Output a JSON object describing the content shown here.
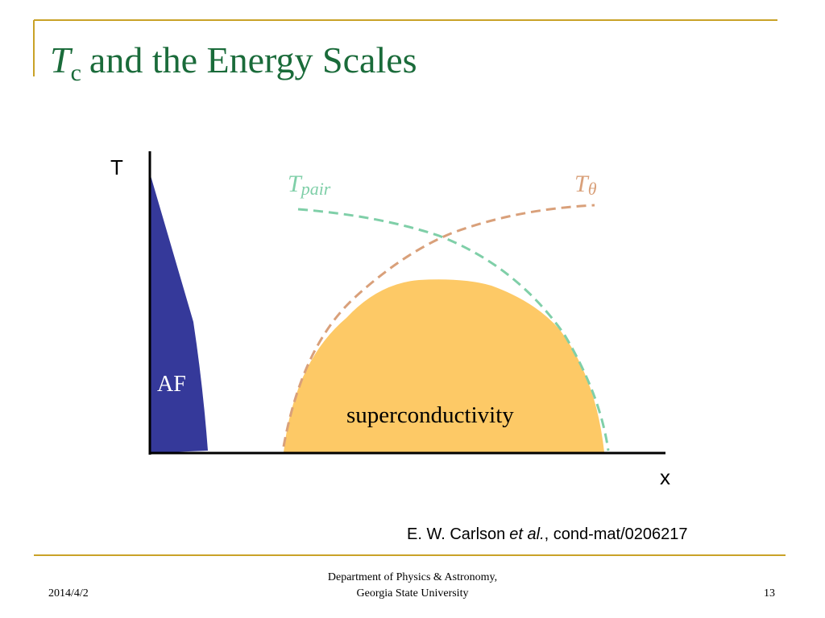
{
  "title": {
    "main": "T",
    "subscript": "c",
    "rest": "and the Energy Scales"
  },
  "diagram": {
    "y_axis_label": "T",
    "x_axis_label": "x",
    "t_pair": {
      "main": "T",
      "subscript": "pair"
    },
    "t_theta": {
      "main": "T",
      "subscript": "θ"
    },
    "af_label": "AF",
    "sc_label": "superconductivity"
  },
  "citation": {
    "authors": "E. W. Carlson",
    "etal": "et al.",
    "ref": ", cond-mat/0206217"
  },
  "footer": {
    "date": "2014/4/2",
    "dept_line1": "Department of Physics & Astronomy,",
    "dept_line2": "Georgia State University",
    "page": "13"
  }
}
